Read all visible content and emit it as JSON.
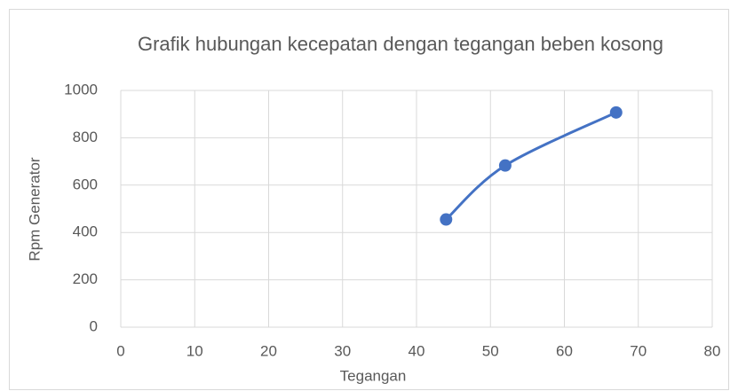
{
  "chart_data": {
    "type": "scatter",
    "title": "Grafik hubungan kecepatan dengan tegangan beben kosong",
    "xlabel": "Tegangan",
    "ylabel": "Rpm Generator",
    "series": [
      {
        "name": "Rpm Generator",
        "color": "#4472c4",
        "x": [
          44,
          52,
          67
        ],
        "values": [
          455,
          683,
          907
        ]
      }
    ],
    "xlim": [
      0,
      80
    ],
    "xticks": [
      0,
      10,
      20,
      30,
      40,
      50,
      60,
      70,
      80
    ],
    "ylim": [
      0,
      1000
    ],
    "yticks": [
      0,
      200,
      400,
      600,
      800,
      1000
    ],
    "grid": true,
    "smooth": true
  }
}
